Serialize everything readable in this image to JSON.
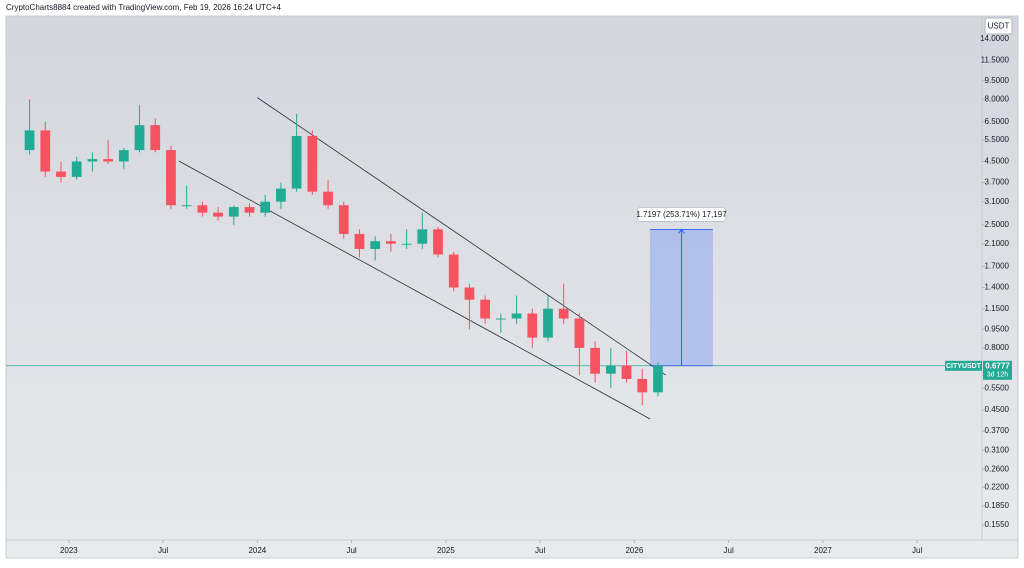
{
  "header": "CryptoCharts8884 created with TradingView.com, Feb 19, 2026 16:24 UTC+4",
  "chart_data": {
    "type": "candlestick",
    "symbol": "CITYUSDT",
    "currency": "USDT",
    "last_price": 0.6777,
    "countdown": "3d 12h",
    "log_scale": true,
    "grid": false,
    "up_color": "#22ab94",
    "down_color": "#f7525f",
    "x": [
      "2022-10",
      "2022-11",
      "2022-12",
      "2023-01",
      "2023-02",
      "2023-03",
      "2023-04",
      "2023-05",
      "2023-06",
      "2023-07",
      "2023-08",
      "2023-09",
      "2023-10",
      "2023-11",
      "2023-12",
      "2024-01",
      "2024-02",
      "2024-03",
      "2024-04",
      "2024-05",
      "2024-06",
      "2024-07",
      "2024-08",
      "2024-09",
      "2024-10",
      "2024-11",
      "2024-12",
      "2025-01",
      "2025-02",
      "2025-03",
      "2025-04",
      "2025-05",
      "2025-06",
      "2025-07",
      "2025-08",
      "2025-09",
      "2025-10",
      "2025-11",
      "2025-12",
      "2026-01",
      "2026-02"
    ],
    "open": [
      5.0,
      6.0,
      4.1,
      3.9,
      4.5,
      4.6,
      4.5,
      5.0,
      6.3,
      5.0,
      3.0,
      3.0,
      2.8,
      2.7,
      2.95,
      2.8,
      3.1,
      3.5,
      5.7,
      3.4,
      3.0,
      2.3,
      2.0,
      2.15,
      2.1,
      2.1,
      2.4,
      1.9,
      1.4,
      1.25,
      1.05,
      1.05,
      1.1,
      0.88,
      1.15,
      1.05,
      0.8,
      0.63,
      0.68,
      0.6,
      0.53
    ],
    "high": [
      8.0,
      6.5,
      4.5,
      4.7,
      4.9,
      5.5,
      5.1,
      7.6,
      6.7,
      5.2,
      3.6,
      3.1,
      2.95,
      3.0,
      3.05,
      3.3,
      3.7,
      7.0,
      6.0,
      3.8,
      3.1,
      2.4,
      2.25,
      2.3,
      2.4,
      2.8,
      2.45,
      1.95,
      1.45,
      1.3,
      1.1,
      1.3,
      1.15,
      1.3,
      1.45,
      1.1,
      0.85,
      0.8,
      0.78,
      0.66,
      0.7
    ],
    "low": [
      4.8,
      3.9,
      3.7,
      3.8,
      4.1,
      4.4,
      4.2,
      4.9,
      4.9,
      2.9,
      2.9,
      2.7,
      2.6,
      2.5,
      2.7,
      2.7,
      2.9,
      3.4,
      3.3,
      2.9,
      2.2,
      1.85,
      1.8,
      1.95,
      2.0,
      2.0,
      1.85,
      1.35,
      0.95,
      1.0,
      0.92,
      1.0,
      0.8,
      0.85,
      1.0,
      0.62,
      0.58,
      0.55,
      0.58,
      0.47,
      0.51
    ],
    "close": [
      6.0,
      4.1,
      3.9,
      4.5,
      4.6,
      4.5,
      5.0,
      6.3,
      5.0,
      3.0,
      3.0,
      2.8,
      2.7,
      2.95,
      2.8,
      3.1,
      3.5,
      5.7,
      3.4,
      3.0,
      2.3,
      2.0,
      2.15,
      2.1,
      2.1,
      2.4,
      1.9,
      1.4,
      1.25,
      1.05,
      1.05,
      1.1,
      0.88,
      1.15,
      1.05,
      0.8,
      0.63,
      0.68,
      0.6,
      0.53,
      0.6777
    ],
    "xlim": [
      "2022-09",
      "2027-11"
    ],
    "xticks": [
      {
        "value": "2023-01",
        "label": "2023"
      },
      {
        "value": "2023-07",
        "label": "Jul"
      },
      {
        "value": "2024-01",
        "label": "2024"
      },
      {
        "value": "2024-07",
        "label": "Jul"
      },
      {
        "value": "2025-01",
        "label": "2025"
      },
      {
        "value": "2025-07",
        "label": "Jul"
      },
      {
        "value": "2026-01",
        "label": "2026"
      },
      {
        "value": "2026-07",
        "label": "Jul"
      },
      {
        "value": "2027-01",
        "label": "2027"
      },
      {
        "value": "2027-07",
        "label": "Jul"
      }
    ],
    "ylim": [
      0.1349,
      17.32
    ],
    "yticks": [
      {
        "value": 14,
        "label": "14.0000"
      },
      {
        "value": 11.5,
        "label": "11.5000"
      },
      {
        "value": 9.5,
        "label": "9.5000"
      },
      {
        "value": 8,
        "label": "8.0000"
      },
      {
        "value": 6.5,
        "label": "6.5000"
      },
      {
        "value": 5.5,
        "label": "5.5000"
      },
      {
        "value": 4.5,
        "label": "4.5000"
      },
      {
        "value": 3.7,
        "label": "3.7000"
      },
      {
        "value": 3.1,
        "label": "3.1000"
      },
      {
        "value": 2.5,
        "label": "2.5000"
      },
      {
        "value": 2.1,
        "label": "2.1000"
      },
      {
        "value": 1.7,
        "label": "1.7000"
      },
      {
        "value": 1.4,
        "label": "1.4000"
      },
      {
        "value": 1.15,
        "label": "1.1500"
      },
      {
        "value": 0.95,
        "label": "0.9500"
      },
      {
        "value": 0.8,
        "label": "0.8000"
      },
      {
        "value": 0.55,
        "label": "0.5500"
      },
      {
        "value": 0.45,
        "label": "0.4500"
      },
      {
        "value": 0.37,
        "label": "0.3700"
      },
      {
        "value": 0.31,
        "label": "0.3100"
      },
      {
        "value": 0.26,
        "label": "0.2600"
      },
      {
        "value": 0.22,
        "label": "0.2200"
      },
      {
        "value": 0.185,
        "label": "0.1850"
      },
      {
        "value": 0.155,
        "label": "0.1550"
      }
    ],
    "trendlines": [
      {
        "x": [
          "2024-01",
          "2026-03"
        ],
        "y": [
          8.13,
          0.622
        ]
      },
      {
        "x": [
          "2023-08",
          "2026-02"
        ],
        "y": [
          4.52,
          0.414
        ]
      }
    ],
    "measure": {
      "x": [
        "2026-02",
        "2026-06"
      ],
      "from": 0.6777,
      "change": 1.7197,
      "label": "1.7197 (253.71%) 17,197"
    }
  }
}
